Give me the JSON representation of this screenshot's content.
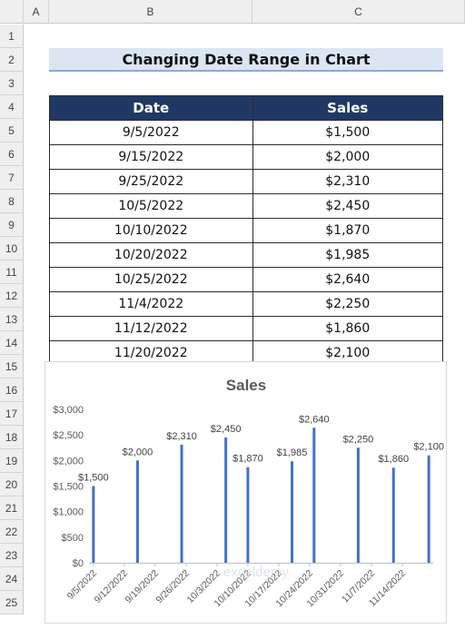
{
  "sheet": {
    "columns": [
      "A",
      "B",
      "C"
    ],
    "rows": [
      "1",
      "2",
      "3",
      "4",
      "5",
      "6",
      "7",
      "8",
      "9",
      "10",
      "11",
      "12",
      "13",
      "14",
      "15",
      "16",
      "17",
      "18",
      "19",
      "20",
      "21",
      "22",
      "23",
      "24",
      "25"
    ]
  },
  "title": "Changing Date Range in Chart",
  "table": {
    "headers": [
      "Date",
      "Sales"
    ],
    "rows": [
      [
        "9/5/2022",
        "$1,500"
      ],
      [
        "9/15/2022",
        "$2,000"
      ],
      [
        "9/25/2022",
        "$2,310"
      ],
      [
        "10/5/2022",
        "$2,450"
      ],
      [
        "10/10/2022",
        "$1,870"
      ],
      [
        "10/20/2022",
        "$1,985"
      ],
      [
        "10/25/2022",
        "$2,640"
      ],
      [
        "11/4/2022",
        "$2,250"
      ],
      [
        "11/12/2022",
        "$1,860"
      ],
      [
        "11/20/2022",
        "$2,100"
      ]
    ]
  },
  "watermark": "exceldemy",
  "colors": {
    "header_fill": "#203864",
    "title_fill": "#dce6f2",
    "bar": "#4472c4"
  },
  "chart_data": {
    "type": "bar",
    "title": "Sales",
    "x_is_date": true,
    "x": [
      "2022-09-05",
      "2022-09-15",
      "2022-09-25",
      "2022-10-05",
      "2022-10-10",
      "2022-10-20",
      "2022-10-25",
      "2022-11-04",
      "2022-11-12",
      "2022-11-20"
    ],
    "values": [
      1500,
      2000,
      2310,
      2450,
      1870,
      1985,
      2640,
      2250,
      1860,
      2100
    ],
    "data_labels": [
      "$1,500",
      "$2,000",
      "$2,310",
      "$2,450",
      "$1,870",
      "$1,985",
      "$2,640",
      "$2,250",
      "$1,860",
      "$2,100"
    ],
    "ylim": [
      0,
      3000
    ],
    "y_ticks": [
      "$0",
      "$500",
      "$1,000",
      "$1,500",
      "$2,000",
      "$2,500",
      "$3,000"
    ],
    "x_tick_dates": [
      "2022-09-05",
      "2022-09-12",
      "2022-09-19",
      "2022-09-26",
      "2022-10-03",
      "2022-10-10",
      "2022-10-17",
      "2022-10-24",
      "2022-10-31",
      "2022-11-07",
      "2022-11-14"
    ],
    "x_ticks": [
      "9/5/2022",
      "9/12/2022",
      "9/19/2022",
      "9/26/2022",
      "10/3/2022",
      "10/10/2022",
      "10/17/2022",
      "10/24/2022",
      "10/31/2022",
      "11/7/2022",
      "11/14/2022"
    ],
    "x_range": [
      "2022-09-04",
      "2022-11-21"
    ],
    "grid": false,
    "legend": "none"
  }
}
